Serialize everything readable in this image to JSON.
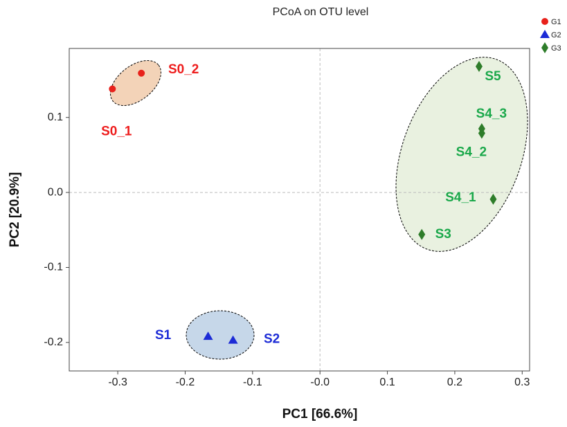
{
  "chart_data": {
    "type": "scatter",
    "title": "PCoA on OTU level",
    "x_label": "PC1 [66.6%]",
    "y_label": "PC2 [20.9%]",
    "xlim": [
      -0.372,
      0.311
    ],
    "ylim": [
      -0.238,
      0.192
    ],
    "xticks": [
      -0.3,
      -0.2,
      -0.1,
      {
        "value": 0,
        "label": "-0.0"
      },
      0.1,
      0.2,
      0.3
    ],
    "yticks": [
      -0.2,
      -0.1,
      {
        "value": 0,
        "label": "0.0"
      },
      0.1
    ],
    "series": [
      {
        "name": "G1",
        "color": "#e8211b",
        "label_color": "#ee1c1c",
        "marker": "circle",
        "x": [
          -0.308,
          -0.265
        ],
        "values": [
          0.138,
          0.159
        ],
        "labels": [
          "S0_1",
          "S0_2"
        ]
      },
      {
        "name": "G2",
        "color": "#1c2bd6",
        "label_color": "#1c2bd6",
        "marker": "triangle",
        "x": [
          -0.166,
          -0.129
        ],
        "values": [
          -0.192,
          -0.197
        ],
        "labels": [
          "S1",
          "S2"
        ]
      },
      {
        "name": "G3",
        "color": "#2e7d2a",
        "label_color": "#1aa84a",
        "marker": "diamond",
        "x": [
          0.236,
          0.24,
          0.24,
          0.257,
          0.151
        ],
        "values": [
          0.168,
          0.085,
          0.079,
          -0.009,
          -0.056
        ],
        "labels": [
          "S5",
          "S4_3",
          "S4_2",
          "S4_1",
          "S3"
        ]
      }
    ]
  }
}
